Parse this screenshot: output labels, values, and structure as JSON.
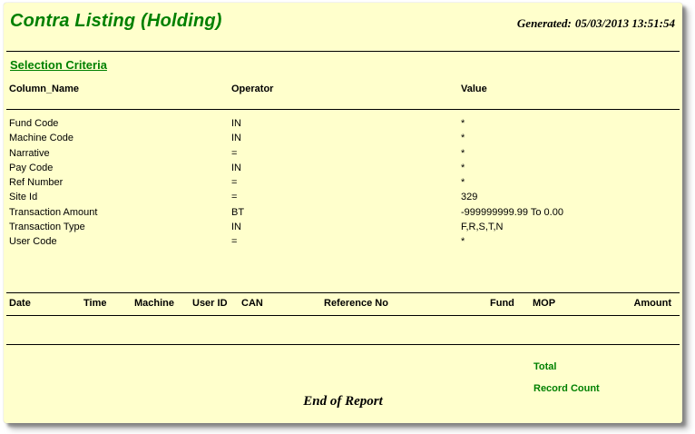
{
  "page": {
    "background_color": "#FFFFCC",
    "accent_green": "#008000",
    "text_color": "#000000"
  },
  "header": {
    "title": "Contra Listing (Holding)",
    "generated_label": "Generated:",
    "generated_timestamp": "05/03/2013 13:51:54"
  },
  "selection_criteria": {
    "section_title": "Selection Criteria",
    "columns": {
      "column_name": "Column_Name",
      "operator": "Operator",
      "value": "Value"
    },
    "rows": [
      {
        "column_name": "Fund Code",
        "operator": "IN",
        "value": "*"
      },
      {
        "column_name": "Machine Code",
        "operator": "IN",
        "value": "*"
      },
      {
        "column_name": "Narrative",
        "operator": "=",
        "value": "*"
      },
      {
        "column_name": "Pay Code",
        "operator": "IN",
        "value": "*"
      },
      {
        "column_name": "Ref Number",
        "operator": "=",
        "value": "*"
      },
      {
        "column_name": "Site Id",
        "operator": "=",
        "value": "329"
      },
      {
        "column_name": "Transaction Amount",
        "operator": "BT",
        "value": "-999999999.99 To 0.00"
      },
      {
        "column_name": "Transaction Type",
        "operator": "IN",
        "value": "F,R,S,T,N"
      },
      {
        "column_name": "User Code",
        "operator": "=",
        "value": "*"
      }
    ]
  },
  "results_table": {
    "columns": [
      "Date",
      "Time",
      "Machine",
      "User ID",
      "CAN",
      "Reference No",
      "Fund",
      "MOP",
      "Amount"
    ],
    "rows": []
  },
  "footer": {
    "total_label": "Total",
    "record_count_label": "Record Count",
    "end_of_report": "End of Report"
  }
}
